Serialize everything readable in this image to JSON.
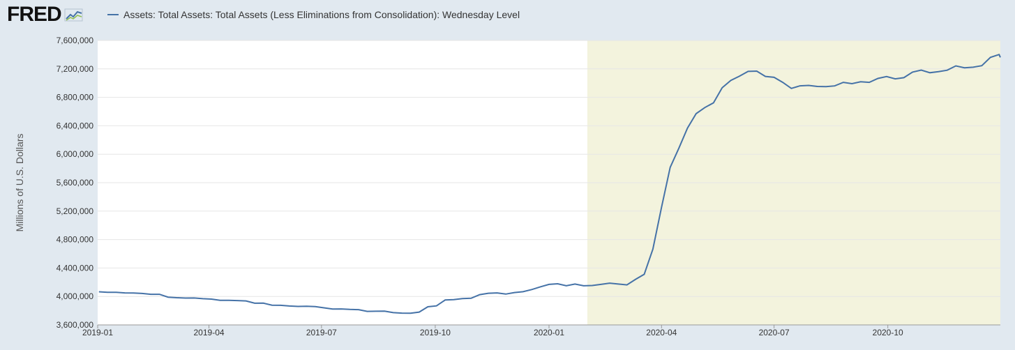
{
  "app": {
    "logo_text": "FRED",
    "logo_icon": "chart-line-icon"
  },
  "colors": {
    "background": "#e1e9f0",
    "plot_background": "#ffffff",
    "line": "#4572a7",
    "recession_shade": "#f3f3dd",
    "grid": "#e6e6e6"
  },
  "chart_data": {
    "type": "line",
    "title": "",
    "legend": "Assets: Total Assets: Total Assets (Less Eliminations from Consolidation): Wednesday Level",
    "legend_position": "top-left",
    "xlabel": "",
    "ylabel": "Millions of U.S. Dollars",
    "xlim": [
      "2019-01-01",
      "2020-12-31"
    ],
    "ylim": [
      3600000,
      7600000
    ],
    "grid": true,
    "x_ticks": [
      "2019-01",
      "2019-04",
      "2019-07",
      "2019-10",
      "2020-01",
      "2020-04",
      "2020-07",
      "2020-10"
    ],
    "y_ticks": [
      "3,600,000",
      "4,000,000",
      "4,400,000",
      "4,800,000",
      "5,200,000",
      "5,600,000",
      "6,000,000",
      "6,400,000",
      "6,800,000",
      "7,200,000",
      "7,600,000"
    ],
    "shaded_region": {
      "start": "2020-02-01",
      "end": "2020-12-31"
    },
    "series": [
      {
        "name": "Assets: Total Assets: Total Assets (Less Eliminations from Consolidation): Wednesday Level",
        "points": [
          [
            "2019-01-02",
            4066000
          ],
          [
            "2019-01-09",
            4058000
          ],
          [
            "2019-01-16",
            4058000
          ],
          [
            "2019-01-23",
            4050000
          ],
          [
            "2019-01-30",
            4049000
          ],
          [
            "2019-02-06",
            4042000
          ],
          [
            "2019-02-13",
            4030000
          ],
          [
            "2019-02-20",
            4030000
          ],
          [
            "2019-02-27",
            3990000
          ],
          [
            "2019-03-06",
            3982000
          ],
          [
            "2019-03-13",
            3977000
          ],
          [
            "2019-03-20",
            3978000
          ],
          [
            "2019-03-27",
            3969000
          ],
          [
            "2019-04-03",
            3963000
          ],
          [
            "2019-04-10",
            3945000
          ],
          [
            "2019-04-17",
            3946000
          ],
          [
            "2019-04-24",
            3942000
          ],
          [
            "2019-05-01",
            3937000
          ],
          [
            "2019-05-08",
            3905000
          ],
          [
            "2019-05-15",
            3906000
          ],
          [
            "2019-05-22",
            3877000
          ],
          [
            "2019-05-29",
            3875000
          ],
          [
            "2019-06-05",
            3866000
          ],
          [
            "2019-06-12",
            3860000
          ],
          [
            "2019-06-19",
            3862000
          ],
          [
            "2019-06-26",
            3858000
          ],
          [
            "2019-07-03",
            3840000
          ],
          [
            "2019-07-10",
            3823000
          ],
          [
            "2019-07-17",
            3825000
          ],
          [
            "2019-07-24",
            3818000
          ],
          [
            "2019-07-31",
            3815000
          ],
          [
            "2019-08-07",
            3790000
          ],
          [
            "2019-08-14",
            3792000
          ],
          [
            "2019-08-21",
            3793000
          ],
          [
            "2019-08-28",
            3773000
          ],
          [
            "2019-09-04",
            3766000
          ],
          [
            "2019-09-11",
            3765000
          ],
          [
            "2019-09-18",
            3780000
          ],
          [
            "2019-09-25",
            3855000
          ],
          [
            "2019-10-02",
            3868000
          ],
          [
            "2019-10-09",
            3950000
          ],
          [
            "2019-10-16",
            3955000
          ],
          [
            "2019-10-23",
            3970000
          ],
          [
            "2019-10-30",
            3975000
          ],
          [
            "2019-11-06",
            4025000
          ],
          [
            "2019-11-13",
            4045000
          ],
          [
            "2019-11-20",
            4050000
          ],
          [
            "2019-11-27",
            4033000
          ],
          [
            "2019-12-04",
            4055000
          ],
          [
            "2019-12-11",
            4067000
          ],
          [
            "2019-12-18",
            4097000
          ],
          [
            "2019-12-25",
            4135000
          ],
          [
            "2020-01-01",
            4170000
          ],
          [
            "2020-01-08",
            4178000
          ],
          [
            "2020-01-15",
            4150000
          ],
          [
            "2020-01-22",
            4175000
          ],
          [
            "2020-01-29",
            4150000
          ],
          [
            "2020-02-05",
            4154000
          ],
          [
            "2020-02-12",
            4170000
          ],
          [
            "2020-02-19",
            4187000
          ],
          [
            "2020-02-26",
            4175000
          ],
          [
            "2020-03-04",
            4163000
          ],
          [
            "2020-03-11",
            4241000
          ],
          [
            "2020-03-18",
            4312000
          ],
          [
            "2020-03-25",
            4666000
          ],
          [
            "2020-04-01",
            5254000
          ],
          [
            "2020-04-08",
            5815000
          ],
          [
            "2020-04-15",
            6083000
          ],
          [
            "2020-04-22",
            6368000
          ],
          [
            "2020-04-29",
            6571000
          ],
          [
            "2020-05-06",
            6656000
          ],
          [
            "2020-05-13",
            6723000
          ],
          [
            "2020-05-20",
            6934000
          ],
          [
            "2020-05-27",
            7037000
          ],
          [
            "2020-06-03",
            7097000
          ],
          [
            "2020-06-10",
            7165000
          ],
          [
            "2020-06-17",
            7169000
          ],
          [
            "2020-06-24",
            7094000
          ],
          [
            "2020-07-01",
            7081000
          ],
          [
            "2020-07-08",
            7011000
          ],
          [
            "2020-07-15",
            6925000
          ],
          [
            "2020-07-22",
            6962000
          ],
          [
            "2020-07-29",
            6968000
          ],
          [
            "2020-08-05",
            6953000
          ],
          [
            "2020-08-12",
            6950000
          ],
          [
            "2020-08-19",
            6961000
          ],
          [
            "2020-08-26",
            7011000
          ],
          [
            "2020-09-02",
            6992000
          ],
          [
            "2020-09-09",
            7019000
          ],
          [
            "2020-09-16",
            7011000
          ],
          [
            "2020-09-23",
            7066000
          ],
          [
            "2020-09-30",
            7092000
          ],
          [
            "2020-10-07",
            7060000
          ],
          [
            "2020-10-14",
            7076000
          ],
          [
            "2020-10-21",
            7155000
          ],
          [
            "2020-10-28",
            7183000
          ],
          [
            "2020-11-04",
            7146000
          ],
          [
            "2020-11-11",
            7162000
          ],
          [
            "2020-11-18",
            7181000
          ],
          [
            "2020-11-25",
            7242000
          ],
          [
            "2020-12-02",
            7216000
          ],
          [
            "2020-12-09",
            7224000
          ],
          [
            "2020-12-16",
            7245000
          ],
          [
            "2020-12-23",
            7362000
          ],
          [
            "2020-12-30",
            7402000
          ],
          [
            "2020-12-31",
            7362000
          ]
        ]
      }
    ]
  }
}
